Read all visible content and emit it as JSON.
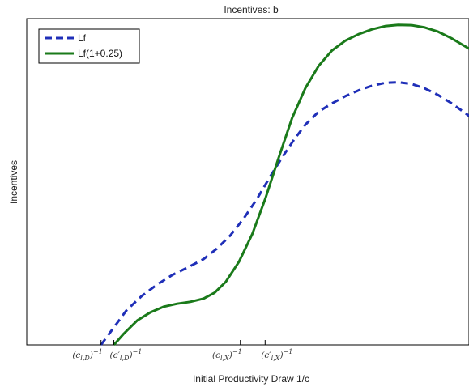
{
  "chart_data": {
    "type": "line",
    "title": "Incentives: b",
    "xlabel": "Initial Productivity Draw 1/c",
    "ylabel": "Incentives",
    "xlim": [
      0,
      100
    ],
    "ylim": [
      0,
      100
    ],
    "grid": false,
    "legend_position": "top-left",
    "x_ticks": [
      {
        "label": "(c_{l,D})^{-1}",
        "x": 16.8
      },
      {
        "label": "(c'_{l,D})^{-1}",
        "x": 19.7
      },
      {
        "label": "(c_{l,X})^{-1}",
        "x": 48.3
      },
      {
        "label": "(c'_{l,X})^{-1}",
        "x": 53.9
      }
    ],
    "tick_text": [
      {
        "base": "(c",
        "sub": "l,D",
        "tail": ")",
        "sup": "−1"
      },
      {
        "base": "(c′",
        "sub": "l,D",
        "tail": ")",
        "sup": "−1"
      },
      {
        "base": "(c",
        "sub": "l,X",
        "tail": ")",
        "sup": "−1"
      },
      {
        "base": "(c′",
        "sub": "l,X",
        "tail": ")",
        "sup": "−1"
      }
    ],
    "series": [
      {
        "name": "Lf",
        "color": "#1f2fb8",
        "style": "dashed",
        "points": [
          [
            16.8,
            0
          ],
          [
            19.5,
            5
          ],
          [
            22.5,
            10.5
          ],
          [
            26,
            15
          ],
          [
            29.5,
            18.5
          ],
          [
            33,
            21.5
          ],
          [
            36.5,
            23.8
          ],
          [
            40,
            26.3
          ],
          [
            43,
            29.5
          ],
          [
            46,
            33.5
          ],
          [
            49,
            38.6
          ],
          [
            52,
            44.6
          ],
          [
            55,
            51.5
          ],
          [
            58,
            58
          ],
          [
            60.5,
            63
          ],
          [
            63,
            67.5
          ],
          [
            66,
            71.5
          ],
          [
            69,
            74
          ],
          [
            72,
            76.2
          ],
          [
            75,
            78
          ],
          [
            78,
            79.4
          ],
          [
            81,
            80.3
          ],
          [
            84,
            80.5
          ],
          [
            87,
            80
          ],
          [
            90,
            78.6
          ],
          [
            93,
            76.6
          ],
          [
            96,
            74.1
          ],
          [
            100,
            70.2
          ]
        ]
      },
      {
        "name": "Lf(1+0.25)",
        "color": "#1a7a1a",
        "style": "solid",
        "points": [
          [
            19.7,
            0
          ],
          [
            22,
            3.5
          ],
          [
            25,
            7.5
          ],
          [
            28,
            10
          ],
          [
            31,
            11.7
          ],
          [
            34,
            12.6
          ],
          [
            37,
            13.2
          ],
          [
            40,
            14.2
          ],
          [
            42.5,
            16
          ],
          [
            45,
            19.3
          ],
          [
            48,
            25.5
          ],
          [
            51,
            34
          ],
          [
            54,
            45
          ],
          [
            57,
            57.5
          ],
          [
            60,
            69.5
          ],
          [
            63,
            78.7
          ],
          [
            66,
            85.5
          ],
          [
            69,
            90.2
          ],
          [
            72,
            93.2
          ],
          [
            75,
            95.2
          ],
          [
            78,
            96.7
          ],
          [
            81,
            97.7
          ],
          [
            84,
            98.1
          ],
          [
            87,
            98
          ],
          [
            90,
            97.3
          ],
          [
            93,
            96
          ],
          [
            96,
            94
          ],
          [
            100,
            90.8
          ]
        ]
      }
    ]
  }
}
